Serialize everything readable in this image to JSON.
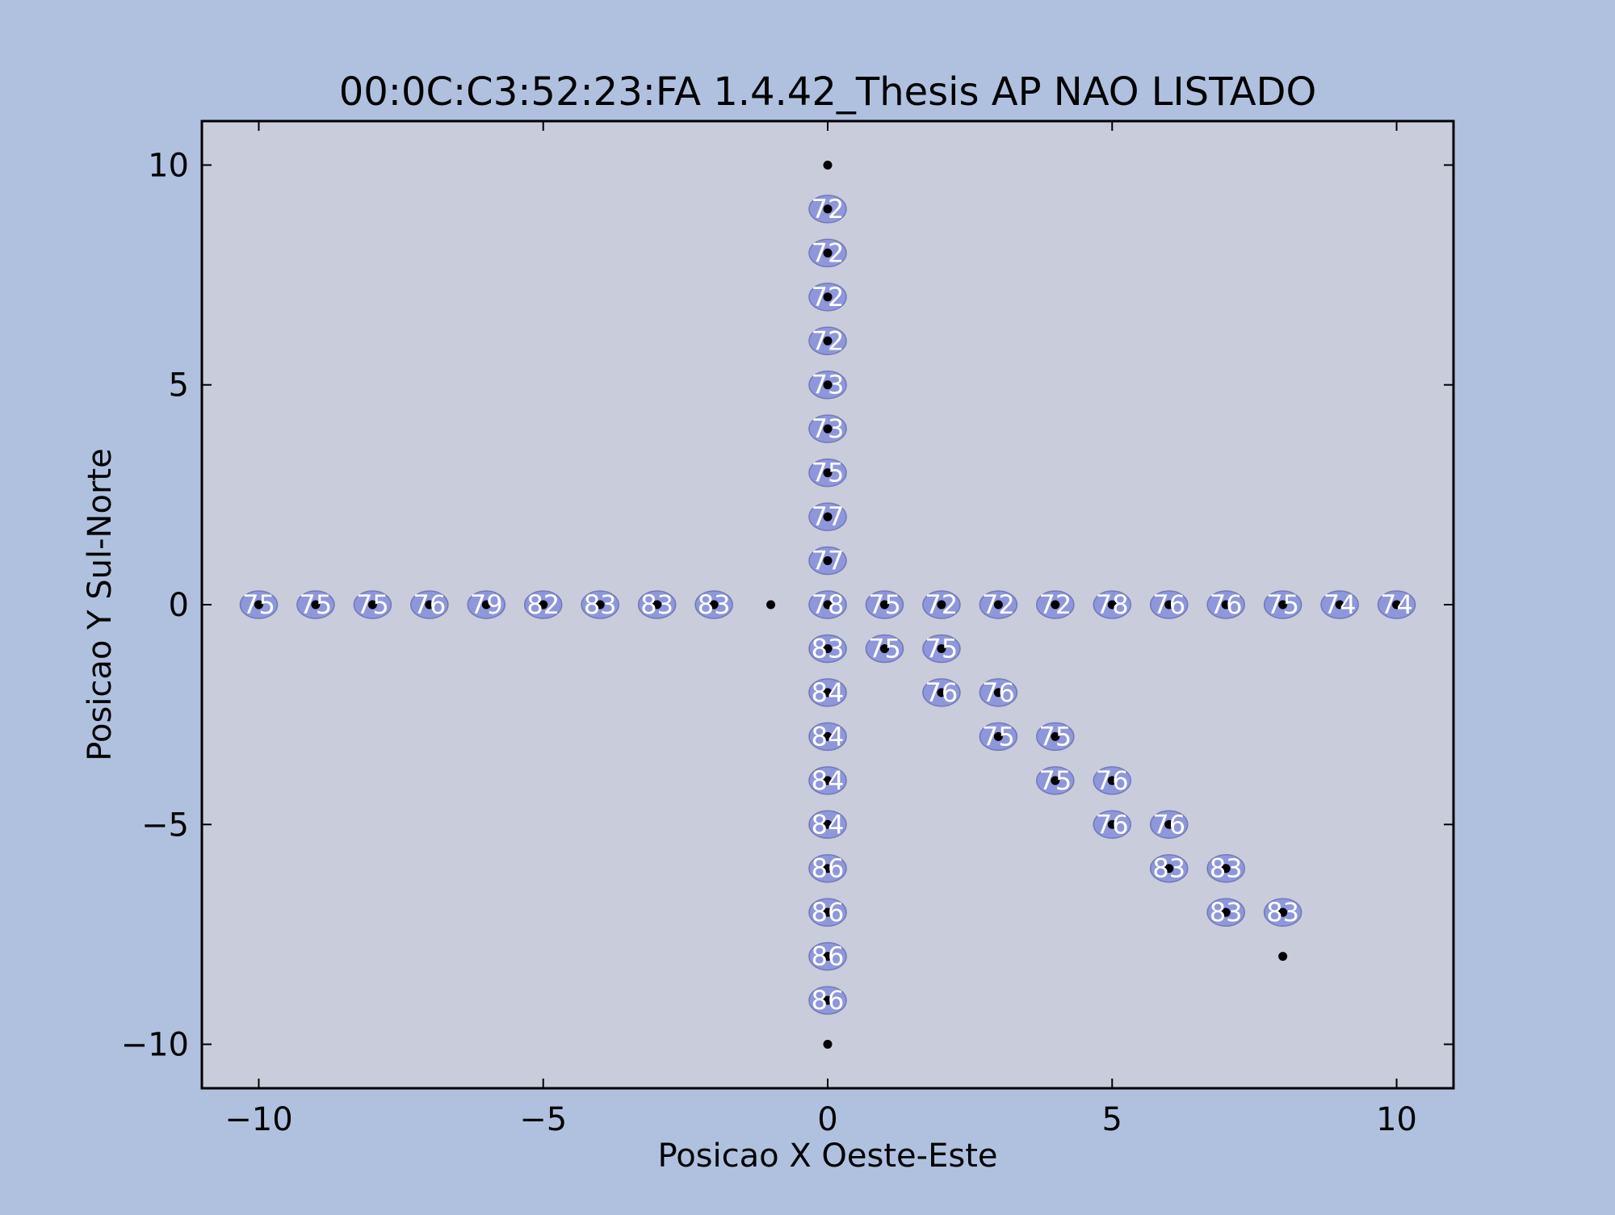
{
  "chart_data": {
    "type": "scatter",
    "title": "00:0C:C3:52:23:FA 1.4.42_Thesis AP NAO LISTADO",
    "xlabel": "Posicao X Oeste-Este",
    "ylabel": "Posicao Y Sul-Norte",
    "xlim": [
      -11,
      11
    ],
    "ylim": [
      -11,
      11
    ],
    "xticks": [
      -10,
      -5,
      0,
      5,
      10
    ],
    "yticks": [
      -10,
      -5,
      0,
      5,
      10
    ],
    "xtick_labels": [
      "−10",
      "−5",
      "0",
      "5",
      "10"
    ],
    "ytick_labels": [
      "−10",
      "−5",
      "0",
      "5",
      "10"
    ],
    "grid": false,
    "colors": {
      "figure_background": "#b0c1e0",
      "plot_background": "#c8ccdb",
      "marker_fill": "#8f97dc",
      "label_text": "#ffffff",
      "point_dot": "#000000"
    },
    "points": [
      {
        "x": -10,
        "y": 0,
        "value": 75
      },
      {
        "x": -9,
        "y": 0,
        "value": 75
      },
      {
        "x": -8,
        "y": 0,
        "value": 75
      },
      {
        "x": -7,
        "y": 0,
        "value": 76
      },
      {
        "x": -6,
        "y": 0,
        "value": 79
      },
      {
        "x": -5,
        "y": 0,
        "value": 82
      },
      {
        "x": -4,
        "y": 0,
        "value": 83
      },
      {
        "x": -3,
        "y": 0,
        "value": 83
      },
      {
        "x": -2,
        "y": 0,
        "value": 83
      },
      {
        "x": -1,
        "y": 0,
        "value": null
      },
      {
        "x": 0,
        "y": 10,
        "value": null
      },
      {
        "x": 0,
        "y": 9,
        "value": 72
      },
      {
        "x": 0,
        "y": 8,
        "value": 72
      },
      {
        "x": 0,
        "y": 7,
        "value": 72
      },
      {
        "x": 0,
        "y": 6,
        "value": 72
      },
      {
        "x": 0,
        "y": 5,
        "value": 73
      },
      {
        "x": 0,
        "y": 4,
        "value": 73
      },
      {
        "x": 0,
        "y": 3,
        "value": 75
      },
      {
        "x": 0,
        "y": 2,
        "value": 77
      },
      {
        "x": 0,
        "y": 1,
        "value": 77
      },
      {
        "x": 0,
        "y": 0,
        "value": 78
      },
      {
        "x": 0,
        "y": -1,
        "value": 83
      },
      {
        "x": 0,
        "y": -2,
        "value": 84
      },
      {
        "x": 0,
        "y": -3,
        "value": 84
      },
      {
        "x": 0,
        "y": -4,
        "value": 84
      },
      {
        "x": 0,
        "y": -5,
        "value": 84
      },
      {
        "x": 0,
        "y": -6,
        "value": 86
      },
      {
        "x": 0,
        "y": -7,
        "value": 86
      },
      {
        "x": 0,
        "y": -8,
        "value": 86
      },
      {
        "x": 0,
        "y": -9,
        "value": 86
      },
      {
        "x": 0,
        "y": -10,
        "value": null
      },
      {
        "x": 1,
        "y": 0,
        "value": 75
      },
      {
        "x": 2,
        "y": 0,
        "value": 72
      },
      {
        "x": 3,
        "y": 0,
        "value": 72
      },
      {
        "x": 4,
        "y": 0,
        "value": 72
      },
      {
        "x": 5,
        "y": 0,
        "value": 78
      },
      {
        "x": 6,
        "y": 0,
        "value": 76
      },
      {
        "x": 7,
        "y": 0,
        "value": 76
      },
      {
        "x": 8,
        "y": 0,
        "value": 75
      },
      {
        "x": 9,
        "y": 0,
        "value": 74
      },
      {
        "x": 10,
        "y": 0,
        "value": 74
      },
      {
        "x": 1,
        "y": -1,
        "value": 75
      },
      {
        "x": 2,
        "y": -1,
        "value": 75
      },
      {
        "x": 2,
        "y": -2,
        "value": 76
      },
      {
        "x": 3,
        "y": -2,
        "value": 76
      },
      {
        "x": 3,
        "y": -3,
        "value": 75
      },
      {
        "x": 4,
        "y": -3,
        "value": 75
      },
      {
        "x": 4,
        "y": -4,
        "value": 75
      },
      {
        "x": 5,
        "y": -4,
        "value": 76
      },
      {
        "x": 5,
        "y": -5,
        "value": 76
      },
      {
        "x": 6,
        "y": -5,
        "value": 76
      },
      {
        "x": 6,
        "y": -6,
        "value": 83
      },
      {
        "x": 7,
        "y": -6,
        "value": 83
      },
      {
        "x": 7,
        "y": -7,
        "value": 83
      },
      {
        "x": 8,
        "y": -7,
        "value": 83
      },
      {
        "x": 8,
        "y": -8,
        "value": null
      }
    ]
  }
}
